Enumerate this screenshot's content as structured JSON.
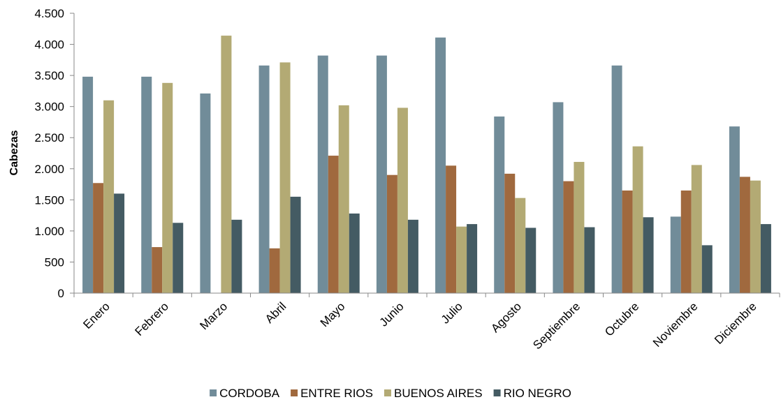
{
  "chart_data": {
    "type": "bar",
    "title": "",
    "xlabel": "",
    "ylabel": "Cabezas",
    "ylim": [
      0,
      4500
    ],
    "yticks": [
      0,
      500,
      1000,
      1500,
      2000,
      2500,
      3000,
      3500,
      4000,
      4500
    ],
    "ytick_labels": [
      "0",
      "500",
      "1.000",
      "1.500",
      "2.000",
      "2.500",
      "3.000",
      "3.500",
      "4.000",
      "4.500"
    ],
    "grid": false,
    "legend_position": "bottom",
    "categories": [
      "Enero",
      "Febrero",
      "Marzo",
      "Abril",
      "Mayo",
      "Junio",
      "Julio",
      "Agosto",
      "Septiembre",
      "Octubre",
      "Noviembre",
      "Diciembre"
    ],
    "series": [
      {
        "name": "CORDOBA",
        "color": "#718C99",
        "values": [
          3480,
          3480,
          3210,
          3660,
          3820,
          3820,
          4110,
          2840,
          3070,
          3660,
          1230,
          2680
        ]
      },
      {
        "name": "ENTRE RIOS",
        "color": "#A0693E",
        "values": [
          1770,
          740,
          0,
          720,
          2210,
          1900,
          2050,
          1920,
          1800,
          1650,
          1650,
          1870
        ]
      },
      {
        "name": "BUENOS AIRES",
        "color": "#B3AA74",
        "values": [
          3100,
          3380,
          4140,
          3710,
          3020,
          2980,
          1070,
          1530,
          2110,
          2360,
          2060,
          1810
        ]
      },
      {
        "name": "RIO NEGRO",
        "color": "#445B63",
        "values": [
          1600,
          1130,
          1180,
          1550,
          1280,
          1180,
          1110,
          1050,
          1060,
          1220,
          770,
          1110
        ]
      }
    ]
  }
}
